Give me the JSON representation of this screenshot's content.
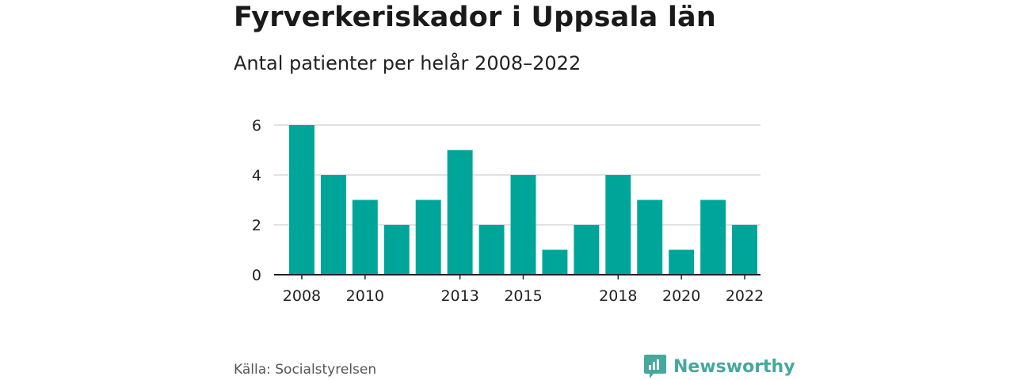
{
  "title": "Fyrverkeriskador i Uppsala län",
  "subtitle": "Antal patienter per helår 2008–2022",
  "source": "Källa: Socialstyrelsen",
  "brand": {
    "name": "Newsworthy",
    "icon": "newsworthy-logo-icon",
    "color": "#45a89c"
  },
  "chart_data": {
    "type": "bar",
    "title": "Fyrverkeriskador i Uppsala län",
    "subtitle": "Antal patienter per helår 2008–2022",
    "categories": [
      "2008",
      "2009",
      "2010",
      "2011",
      "2012",
      "2013",
      "2014",
      "2015",
      "2016",
      "2017",
      "2018",
      "2019",
      "2020",
      "2021",
      "2022"
    ],
    "values": [
      6,
      4,
      3,
      2,
      3,
      5,
      2,
      4,
      1,
      2,
      4,
      3,
      1,
      3,
      2
    ],
    "x_tick_labels": [
      "2008",
      "2010",
      "2013",
      "2015",
      "2018",
      "2020",
      "2022"
    ],
    "y_ticks": [
      0,
      2,
      4,
      6
    ],
    "ylim": [
      0,
      6
    ],
    "grid": true,
    "bar_color": "#00a59a",
    "xlabel": "",
    "ylabel": ""
  }
}
